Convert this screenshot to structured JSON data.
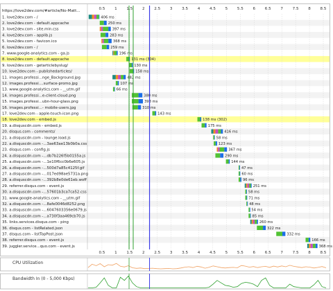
{
  "waterfall": {
    "header_url": "https://love2dev.com/#article/No-Matt...",
    "tick_labels": [
      "0.5",
      "1",
      "1.5",
      "2",
      "2.5",
      "3",
      "3.5",
      "4",
      "4.5",
      "5",
      "5.5",
      "6",
      "6.5",
      "7",
      "7.5",
      "8",
      "8.5"
    ],
    "ticks": [
      0.5,
      1,
      1.5,
      2,
      2.5,
      3,
      3.5,
      4,
      4.5,
      5,
      5.5,
      6,
      6.5,
      7,
      7.5,
      8,
      8.5
    ],
    "time_range": [
      0,
      8.6
    ],
    "markers": {
      "start_render": 1.48,
      "dom_content_loaded": 1.63,
      "on_load": 2.22
    },
    "colors": {
      "dns": "#1e8c82",
      "connect": "#f28c20",
      "ssl": "#c44dc4",
      "ttfb": "#52c234",
      "download": "#1c6ee6",
      "highlight": "#ffff99",
      "row_alt": "#f3f3f3",
      "start_render": "#2ea02e",
      "on_load": "#3a3ae6"
    },
    "requests": [
      {
        "label": "1. love2dev.com - /",
        "start": 0.02,
        "dns": 0.12,
        "connect": 0.08,
        "ssl": 0.08,
        "ttfb": 0.09,
        "dl": 0.02,
        "time": "406 ms",
        "highlight": false
      },
      {
        "label": "2. love2dev.com - default.appcache",
        "start": 0.42,
        "dns": 0,
        "connect": 0,
        "ssl": 0,
        "ttfb": 0.15,
        "dl": 0.1,
        "time": "250 ms",
        "highlight": false
      },
      {
        "label": "3. love2dev.com - site.min.css",
        "start": 0.42,
        "dns": 0,
        "connect": 0.05,
        "ssl": 0.06,
        "ttfb": 0.2,
        "dl": 0.09,
        "time": "397 ms",
        "highlight": false
      },
      {
        "label": "4. love2dev.com - applib.js",
        "start": 0.45,
        "dns": 0,
        "connect": 0,
        "ssl": 0,
        "ttfb": 0.18,
        "dl": 0.1,
        "time": "283 ms",
        "highlight": false
      },
      {
        "label": "5. love2dev.com - favicon.ico",
        "start": 0.48,
        "dns": 0,
        "connect": 0.04,
        "ssl": 0.05,
        "ttfb": 0.16,
        "dl": 0.12,
        "time": "368 ms",
        "highlight": false
      },
      {
        "label": "6. love2dev.com - /",
        "start": 0.5,
        "dns": 0,
        "connect": 0,
        "ssl": 0,
        "ttfb": 0.17,
        "dl": 0.09,
        "time": "259 ms",
        "highlight": false
      },
      {
        "label": "7. www.google-analytics.com - ga.js",
        "start": 0.88,
        "dns": 0.03,
        "connect": 0.03,
        "ssl": 0,
        "ttfb": 0.09,
        "dl": 0.04,
        "time": "196 ms",
        "highlight": false
      },
      {
        "label": "8. love2dev.com - default.appcache",
        "start": 1.38,
        "dns": 0,
        "connect": 0,
        "ssl": 0,
        "ttfb": 0.1,
        "dl": 0.03,
        "time": "131 ms (304)",
        "highlight": true
      },
      {
        "label": "9. love2dev.com - getarticlebyslug/",
        "start": 1.48,
        "dns": 0,
        "connect": 0,
        "ssl": 0,
        "ttfb": 0.1,
        "dl": 0.03,
        "time": "130 ms",
        "highlight": false
      },
      {
        "label": "10. love2dev.com - publishedarticles/",
        "start": 1.5,
        "dns": 0,
        "connect": 0,
        "ssl": 0,
        "ttfb": 0.12,
        "dl": 0.04,
        "time": "158 ms",
        "highlight": false
      },
      {
        "label": "11. images.professi...nge_Background.jpg",
        "start": 0.88,
        "dns": 0.12,
        "connect": 0.08,
        "ssl": 0.1,
        "ttfb": 0.1,
        "dl": 0.08,
        "time": "482 ms",
        "highlight": false
      },
      {
        "label": "12. images.professi....surface-promo.jpg",
        "start": 1.0,
        "dns": 0,
        "connect": 0,
        "ssl": 0,
        "ttfb": 0.07,
        "dl": 0.04,
        "time": "107 ms",
        "highlight": false
      },
      {
        "label": "13. www.google-analytics.com - __utm.gif",
        "start": 0.9,
        "dns": 0,
        "connect": 0,
        "ssl": 0,
        "ttfb": 0.05,
        "dl": 0.02,
        "time": "66 ms",
        "highlight": false
      },
      {
        "label": "14. images.professi...e-client-cloud.png",
        "start": 1.58,
        "dns": 0,
        "connect": 0,
        "ssl": 0,
        "ttfb": 0.24,
        "dl": 0.14,
        "time": "380 ms",
        "highlight": false
      },
      {
        "label": "15. images.professi...ubn-hour-glass.png",
        "start": 1.58,
        "dns": 0,
        "connect": 0,
        "ssl": 0,
        "ttfb": 0.24,
        "dl": 0.16,
        "time": "398 ms",
        "highlight": false
      },
      {
        "label": "16. images.professi...- mobile-users.jpg",
        "start": 1.6,
        "dns": 0,
        "connect": 0,
        "ssl": 0,
        "ttfb": 0.2,
        "dl": 0.11,
        "time": "310 ms",
        "highlight": false
      },
      {
        "label": "17. love2dev.com - apple-touch-icon.png",
        "start": 2.32,
        "dns": 0,
        "connect": 0,
        "ssl": 0,
        "ttfb": 0.1,
        "dl": 0.04,
        "time": "143 ms",
        "highlight": false
      },
      {
        "label": "18. love2dev.com - embed.js",
        "start": 3.95,
        "dns": 0,
        "connect": 0,
        "ssl": 0,
        "ttfb": 0.1,
        "dl": 0.04,
        "time": "138 ms (302)",
        "highlight": true
      },
      {
        "label": "19. a.disquscdn.com - embed.js",
        "start": 4.1,
        "dns": 0,
        "connect": 0,
        "ssl": 0,
        "ttfb": 0.12,
        "dl": 0.06,
        "time": "175 ms",
        "highlight": false
      },
      {
        "label": "20. disqus.com - comments/",
        "start": 4.45,
        "dns": 0.08,
        "connect": 0.07,
        "ssl": 0.1,
        "ttfb": 0.1,
        "dl": 0.07,
        "time": "416 ms",
        "highlight": false
      },
      {
        "label": "21. a.disquscdn.com - lounge.load.js",
        "start": 4.52,
        "dns": 0,
        "connect": 0,
        "ssl": 0,
        "ttfb": 0.04,
        "dl": 0.02,
        "time": "58 ms",
        "highlight": false
      },
      {
        "label": "22. a.disquscdn.com -...3ae63ae13b0b0a.css",
        "start": 4.54,
        "dns": 0,
        "connect": 0,
        "ssl": 0,
        "ttfb": 0.07,
        "dl": 0.05,
        "time": "123 ms",
        "highlight": false
      },
      {
        "label": "23. disqus.com - config.js",
        "start": 4.65,
        "dns": 0,
        "connect": 0.04,
        "ssl": 0.06,
        "ttfb": 0.17,
        "dl": 0.1,
        "time": "367 ms",
        "highlight": false
      },
      {
        "label": "24. a.disquscdn.com -...db7b226f5b0155a.js",
        "start": 4.6,
        "dns": 0,
        "connect": 0,
        "ssl": 0,
        "ttfb": 0.17,
        "dl": 0.12,
        "time": "290 ms",
        "highlight": false
      },
      {
        "label": "25. a.disquscdn.com -...1e10f6cc0b6e605.js",
        "start": 4.98,
        "dns": 0,
        "connect": 0,
        "ssl": 0,
        "ttfb": 0.1,
        "dl": 0.04,
        "time": "144 ms",
        "highlight": false
      },
      {
        "label": "26. a.disquscdn.com -...500d7a85c4125f.gif",
        "start": 5.44,
        "dns": 0,
        "connect": 0,
        "ssl": 0,
        "ttfb": 0.03,
        "dl": 0.02,
        "time": "47 ms",
        "highlight": false
      },
      {
        "label": "27. a.disquscdn.com -...017ed98ae5731a.png",
        "start": 5.44,
        "dns": 0,
        "connect": 0,
        "ssl": 0,
        "ttfb": 0.04,
        "dl": 0.02,
        "time": "60 ms",
        "highlight": false
      },
      {
        "label": "28. a.disquscdn.com -...392b8e0de61eb.woff",
        "start": 5.44,
        "dns": 0,
        "connect": 0,
        "ssl": 0,
        "ttfb": 0.06,
        "dl": 0.04,
        "time": "96 ms",
        "highlight": false
      },
      {
        "label": "29. referrer.disqus.com - event.js",
        "start": 5.66,
        "dns": 0.05,
        "connect": 0.05,
        "ssl": 0.06,
        "ttfb": 0.06,
        "dl": 0.03,
        "time": "251 ms",
        "highlight": false
      },
      {
        "label": "30. a.disquscdn.com -...57601b3ca7ca52.css",
        "start": 5.68,
        "dns": 0,
        "connect": 0,
        "ssl": 0,
        "ttfb": 0.04,
        "dl": 0.02,
        "time": "58 ms",
        "highlight": false
      },
      {
        "label": "31. www.google-analytics.com - __utm.gif",
        "start": 5.68,
        "dns": 0,
        "connect": 0,
        "ssl": 0,
        "ttfb": 0.05,
        "dl": 0.02,
        "time": "71 ms",
        "highlight": false
      },
      {
        "label": "32. a.disquscdn.com -...8afe0046d8252.png",
        "start": 5.72,
        "dns": 0,
        "connect": 0,
        "ssl": 0,
        "ttfb": 0.03,
        "dl": 0.02,
        "time": "48 ms",
        "highlight": false
      },
      {
        "label": "33. a.disquscdn.com -...6047603356e0679.js",
        "start": 5.8,
        "dns": 0,
        "connect": 0,
        "ssl": 0,
        "ttfb": 0.04,
        "dl": 0.01,
        "time": "54 ms",
        "highlight": false
      },
      {
        "label": "34. a.disquscdn.com -...a730f3aa469cb70.js",
        "start": 5.8,
        "dns": 0,
        "connect": 0,
        "ssl": 0,
        "ttfb": 0.06,
        "dl": 0.02,
        "time": "85 ms",
        "highlight": false
      },
      {
        "label": "35. links.services.disqus.com - ping",
        "start": 5.86,
        "dns": 0.05,
        "connect": 0.05,
        "ssl": 0.06,
        "ttfb": 0.08,
        "dl": 0.04,
        "time": "260 ms",
        "highlight": false
      },
      {
        "label": "36. disqus.com - listRelated.json",
        "start": 6.1,
        "dns": 0,
        "connect": 0,
        "ssl": 0,
        "ttfb": 0.22,
        "dl": 0.1,
        "time": "322 ms",
        "highlight": false
      },
      {
        "label": "37. disqus.com - listTopPost.json",
        "start": 6.8,
        "dns": 0,
        "connect": 0,
        "ssl": 0,
        "ttfb": 0.22,
        "dl": 0.11,
        "time": "332 ms",
        "highlight": false
      },
      {
        "label": "38. referrer.disqus.com - event.js",
        "start": 7.86,
        "dns": 0,
        "connect": 0,
        "ssl": 0,
        "ttfb": 0.11,
        "dl": 0.06,
        "time": "166 ms",
        "highlight": false
      },
      {
        "label": "39. juggler.service...quo.com - event.js",
        "start": 7.92,
        "dns": 0.06,
        "connect": 0.06,
        "ssl": 0.08,
        "ttfb": 0.1,
        "dl": 0.07,
        "time": "368 ms",
        "highlight": false
      }
    ],
    "cpu": {
      "label": "CPU Utilization",
      "color": "#f0a060",
      "values": [
        22,
        55,
        40,
        60,
        30,
        50,
        45,
        62,
        35,
        28,
        40,
        20,
        15,
        18,
        12,
        14,
        16,
        12,
        10,
        12,
        14,
        10,
        12,
        18,
        26,
        30,
        22,
        35,
        28,
        16,
        25,
        38,
        30,
        22,
        18,
        22,
        24,
        20,
        42,
        36,
        26,
        32,
        22,
        30,
        34,
        24,
        36,
        28,
        38,
        30,
        44,
        34,
        28,
        22,
        30,
        26,
        18,
        24,
        32,
        20
      ]
    },
    "bandwidth": {
      "label": "Bandwidth In (0 - 5,000 Kbps)",
      "color": "#2ea02e",
      "values": [
        0,
        0,
        5,
        40,
        80,
        20,
        0,
        0,
        85,
        60,
        95,
        40,
        10,
        0,
        0,
        0,
        0,
        0,
        0,
        0,
        0,
        0,
        0,
        0,
        0,
        0,
        0,
        0,
        0,
        0,
        5,
        30,
        60,
        40,
        20,
        15,
        5,
        10,
        35,
        45,
        40,
        30,
        10,
        60,
        80,
        20,
        0,
        0,
        0,
        0,
        30,
        10,
        5,
        0,
        0,
        0,
        25,
        60,
        10,
        0
      ]
    }
  }
}
